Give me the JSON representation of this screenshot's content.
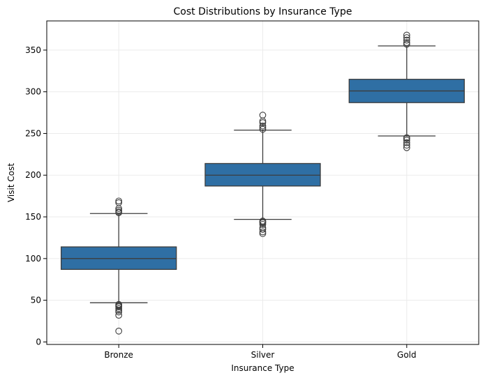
{
  "chart_data": {
    "type": "box",
    "title": "Cost Distributions by Insurance Type",
    "xlabel": "Insurance Type",
    "ylabel": "Visit Cost",
    "ylim": [
      -3,
      385
    ],
    "yticks": [
      0,
      50,
      100,
      150,
      200,
      250,
      300,
      350
    ],
    "grid": true,
    "box_color": "#2f6fa4",
    "line_color": "#3d3d3d",
    "categories": [
      "Bronze",
      "Silver",
      "Gold"
    ],
    "boxes": [
      {
        "category": "Bronze",
        "whisker_low": 47,
        "q1": 87,
        "median": 100,
        "q3": 114,
        "whisker_high": 154,
        "outliers": [
          13,
          32,
          36,
          38,
          40,
          42,
          43,
          44,
          45,
          155,
          156,
          158,
          160,
          167,
          169
        ]
      },
      {
        "category": "Silver",
        "whisker_low": 147,
        "q1": 187,
        "median": 200,
        "q3": 214,
        "whisker_high": 254,
        "outliers": [
          130,
          132,
          135,
          137,
          141,
          143,
          144,
          145,
          255,
          257,
          259,
          263,
          265,
          272
        ]
      },
      {
        "category": "Gold",
        "whisker_low": 247,
        "q1": 287,
        "median": 301,
        "q3": 315,
        "whisker_high": 355,
        "outliers": [
          233,
          236,
          239,
          242,
          244,
          245,
          357,
          359,
          362,
          365,
          368
        ]
      }
    ]
  }
}
